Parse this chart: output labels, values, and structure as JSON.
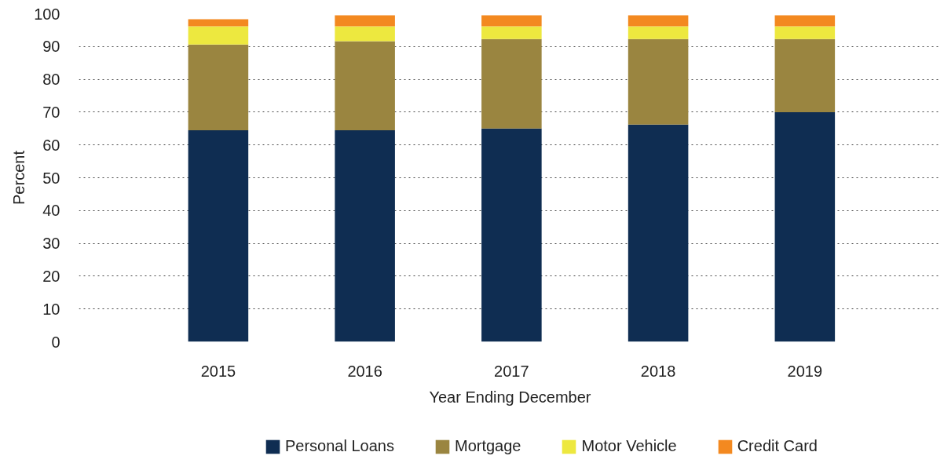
{
  "chart_data": {
    "type": "bar",
    "stacked": true,
    "xlabel": "Year Ending December",
    "ylabel": "Percent",
    "categories": [
      "2015",
      "2016",
      "2017",
      "2018",
      "2019"
    ],
    "series": [
      {
        "name": "Personal Loans",
        "color": "#0f2d52",
        "values": [
          64.5,
          64.5,
          65.0,
          66.2,
          70.0
        ]
      },
      {
        "name": "Mortgage",
        "color": "#9a8540",
        "values": [
          26.1,
          27.1,
          27.3,
          26.1,
          22.3
        ]
      },
      {
        "name": "Motor Vehicle",
        "color": "#ede83f",
        "values": [
          5.6,
          4.6,
          3.9,
          3.9,
          3.9
        ]
      },
      {
        "name": "Credit Card",
        "color": "#f38920",
        "values": [
          2.1,
          3.3,
          3.3,
          3.3,
          3.3
        ]
      }
    ],
    "ylim": [
      0,
      100
    ],
    "yticks": [
      0,
      10,
      20,
      30,
      40,
      50,
      60,
      70,
      80,
      90,
      100
    ],
    "grid": "y",
    "legend": "bottom"
  }
}
